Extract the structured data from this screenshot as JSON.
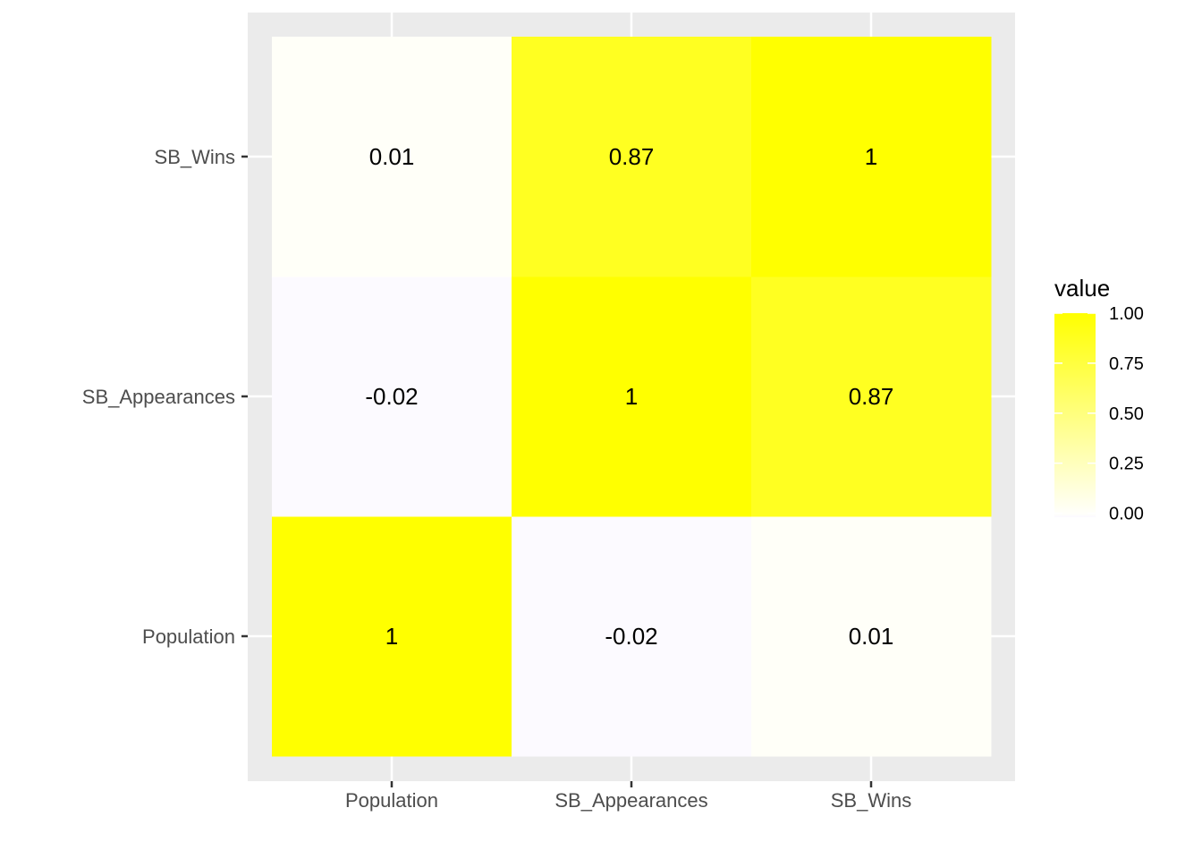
{
  "chart_data": {
    "type": "heatmap",
    "x_categories": [
      "Population",
      "SB_Appearances",
      "SB_Wins"
    ],
    "y_categories": [
      "Population",
      "SB_Appearances",
      "SB_Wins"
    ],
    "cells": [
      {
        "x": "Population",
        "y": "Population",
        "value": 1,
        "label": "1"
      },
      {
        "x": "SB_Appearances",
        "y": "Population",
        "value": -0.02,
        "label": "-0.02"
      },
      {
        "x": "SB_Wins",
        "y": "Population",
        "value": 0.01,
        "label": "0.01"
      },
      {
        "x": "Population",
        "y": "SB_Appearances",
        "value": -0.02,
        "label": "-0.02"
      },
      {
        "x": "SB_Appearances",
        "y": "SB_Appearances",
        "value": 1,
        "label": "1"
      },
      {
        "x": "SB_Wins",
        "y": "SB_Appearances",
        "value": 0.87,
        "label": "0.87"
      },
      {
        "x": "Population",
        "y": "SB_Wins",
        "value": 0.01,
        "label": "0.01"
      },
      {
        "x": "SB_Appearances",
        "y": "SB_Wins",
        "value": 0.87,
        "label": "0.87"
      },
      {
        "x": "SB_Wins",
        "y": "SB_Wins",
        "value": 1,
        "label": "1"
      }
    ],
    "legend": {
      "title": "value",
      "placement": "right",
      "ticks": [
        {
          "value": 1.0,
          "label": "1.00"
        },
        {
          "value": 0.75,
          "label": "0.75"
        },
        {
          "value": 0.5,
          "label": "0.50"
        },
        {
          "value": 0.25,
          "label": "0.25"
        },
        {
          "value": 0.0,
          "label": "0.00"
        }
      ],
      "limits": [
        -0.02,
        1.0
      ]
    },
    "colors": {
      "low": "#fcfaff",
      "mid": "#fffffa",
      "high": "#ffff00",
      "panel_background": "#ebebeb",
      "grid": "#ffffff"
    },
    "grid": true
  }
}
